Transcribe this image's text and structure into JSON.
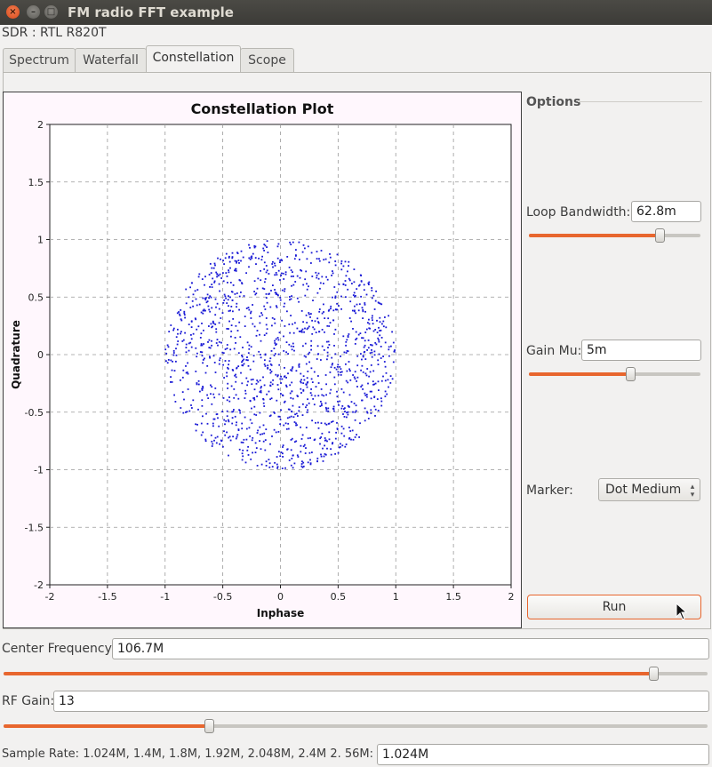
{
  "window": {
    "title": "FM radio FFT example",
    "close": "×",
    "minimize": "–",
    "maximize": "□"
  },
  "sdr_label": "SDR : RTL R820T",
  "tabs": [
    {
      "label": "Spectrum",
      "active": false
    },
    {
      "label": "Waterfall",
      "active": false
    },
    {
      "label": "Constellation",
      "active": true
    },
    {
      "label": "Scope",
      "active": false
    }
  ],
  "chart_data": {
    "type": "scatter",
    "title": "Constellation Plot",
    "xlabel": "Inphase",
    "ylabel": "Quadrature",
    "xlim": [
      -2,
      2
    ],
    "ylim": [
      -2,
      2
    ],
    "xticks": [
      "-2",
      "-1.5",
      "-1",
      "-0.5",
      "0",
      "0.5",
      "1",
      "1.5",
      "2"
    ],
    "yticks": [
      "2",
      "1.5",
      "1",
      "0.5",
      "0",
      "-0.5",
      "-1",
      "-1.5",
      "-2"
    ],
    "grid": true,
    "marker": "dot",
    "series": [
      {
        "color": "#1a1ad6",
        "distribution": "uniform disc",
        "center": [
          0,
          0
        ],
        "radius": 1.0,
        "point_count": 1400
      }
    ]
  },
  "options": {
    "title": "Options",
    "loop_bandwidth": {
      "label": "Loop Bandwidth:",
      "value": "62.8m",
      "slider_fraction": 0.78
    },
    "gain_mu": {
      "label": "Gain Mu:",
      "value": "5m",
      "slider_fraction": 0.6
    },
    "marker": {
      "label": "Marker:",
      "value": "Dot Medium"
    },
    "run_label": "Run"
  },
  "controls": {
    "center_frequency": {
      "label": "Center Frequency:",
      "value": "106.7M",
      "slider_fraction": 0.93
    },
    "rf_gain": {
      "label": "RF Gain:",
      "value": "13",
      "slider_fraction": 0.29
    },
    "sample_rate": {
      "label": "Sample Rate: 1.024M, 1.4M, 1.8M, 1.92M, 2.048M, 2.4M  2. 56M:",
      "value": "1.024M"
    }
  },
  "colors": {
    "accent": "#e8662e",
    "points": "#1a1ad6",
    "plot_bg": "#fff7fd"
  }
}
